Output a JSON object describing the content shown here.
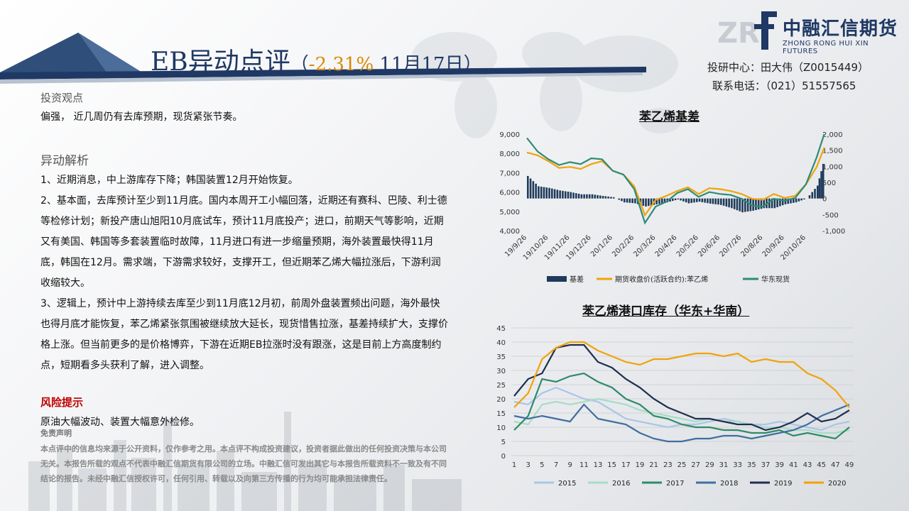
{
  "header": {
    "title_main": "EB异动点评",
    "title_open": "（",
    "title_change": "-2.31%",
    "title_date": " 11月17日",
    "title_close": "）"
  },
  "logo": {
    "letters": "ZR",
    "name_cn": "中融汇信期货",
    "name_en": "ZHONG RONG HUI XIN FUTURES"
  },
  "contact": {
    "line1": "投研中心：田大伟（Z0015449）",
    "line2": "联系电话：（021）51557565"
  },
  "view": {
    "heading": "投资观点",
    "text": "偏强，  近几周仍有去库预期，现货紧张节奏。"
  },
  "analysis": {
    "heading": "异动解析",
    "p1": "1、近期消息，中上游库存下降；韩国装置12月开始恢复。",
    "p2": "2、基本面，去库预计至少到11月底。国内本周开工小幅回落，近期还有赛科、巴陵、利士德等检修计划；新投产唐山旭阳10月底试车，预计11月底投产；进口，前期天气等影响，近期又有美国、韩国等多套装置临时故障，11月进口有进一步缩量预期，海外装置最快得11月底，韩国在12月。需求端，下游需求较好，支撑开工，但近期苯乙烯大幅拉涨后，下游利润收缩较大。",
    "p3": "3、逻辑上，预计中上游持续去库至少到11月底12月初，前周外盘装置频出问题，海外最快也得月底才能恢复，苯乙烯紧张氛围被继续放大延长，现货惜售拉涨，基差持续扩大，支撑价格上涨。但当前更多的是价格博弈，下游在近期EB拉涨时没有跟涨，这是目前上方高度制约点，短期看多头获利了解，进入调整。"
  },
  "risk": {
    "heading": "风险提示",
    "text": "原油大幅波动、装置大幅意外检修。"
  },
  "disclaimer": {
    "heading": "免责声明",
    "text": "本点评中的信息均来源于公开资料，仅作参考之用。本点评不构成投资建议，投资者据此做出的任何投资决策与本公司无关。本报告所载的观点不代表中融汇信期货有限公司的立场。中融汇信可发出其它与本报告所载资料不一致及有不同结论的报告。未经中融汇信授权许可，任何引用、转载以及向第三方传播的行为均可能承担法律责任。"
  },
  "colors": {
    "navy": "#1f3864",
    "basis": "#1f3a5a",
    "futures": "#f0a30a",
    "spot": "#2e8b78",
    "y2015": "#a9c6e8",
    "y2016": "#a8dcc8",
    "y2017": "#2e8b67",
    "y2018": "#3f6f9f",
    "y2019": "#1f2f4f",
    "y2020": "#f0a30a"
  },
  "chart_data": [
    {
      "type": "line",
      "title": "苯乙烯基差",
      "x_ticks": [
        "19/9/26",
        "19/10/26",
        "19/11/26",
        "19/12/26",
        "20/1/26",
        "20/2/26",
        "20/3/26",
        "20/4/26",
        "20/5/26",
        "20/6/26",
        "20/7/26",
        "20/8/26",
        "20/9/26",
        "20/10/26"
      ],
      "x": [
        0,
        0.5,
        1,
        1.5,
        2,
        2.5,
        3,
        3.5,
        4,
        4.5,
        5,
        5.5,
        6,
        6.5,
        7,
        7.5,
        8,
        8.5,
        9,
        9.5,
        10,
        10.5,
        11,
        11.5,
        12,
        12.5,
        13,
        13.5,
        13.85
      ],
      "left_axis": {
        "ylim": [
          4000,
          9000
        ],
        "ticks": [
          "4,000",
          "5,000",
          "6,000",
          "7,000",
          "8,000",
          "9,000"
        ]
      },
      "right_axis": {
        "ylim": [
          -1000,
          2000
        ],
        "ticks": [
          "-1,000",
          "-500",
          "0",
          "500",
          "1,000",
          "1,500",
          "2,000"
        ]
      },
      "legend": [
        "基差",
        "期货收盘价(活跃合约):苯乙烯",
        "华东现货"
      ],
      "series": [
        {
          "name": "基差",
          "axis": "right",
          "kind": "bar",
          "values": [
            700,
            380,
            330,
            250,
            200,
            130,
            130,
            80,
            40,
            -120,
            -150,
            -250,
            -180,
            -120,
            -30,
            -150,
            -100,
            -160,
            -200,
            -300,
            -430,
            -380,
            -300,
            -300,
            -180,
            -120,
            0,
            400,
            1300
          ]
        },
        {
          "name": "期货收盘价(活跃合约):苯乙烯",
          "axis": "left",
          "kind": "line",
          "values": [
            8050,
            7900,
            7600,
            7250,
            7300,
            7200,
            7450,
            7600,
            7100,
            6900,
            6300,
            4800,
            5600,
            5800,
            6050,
            6250,
            5900,
            6200,
            6150,
            6050,
            5900,
            5650,
            5600,
            5900,
            5700,
            5800,
            6400,
            7300,
            8300
          ]
        },
        {
          "name": "华东现货",
          "axis": "left",
          "kind": "line",
          "values": [
            8800,
            8100,
            7700,
            7400,
            7550,
            7450,
            7750,
            7700,
            7100,
            6900,
            6150,
            4400,
            5250,
            5500,
            5950,
            6150,
            5750,
            6000,
            5900,
            5850,
            5650,
            5300,
            5250,
            5650,
            5550,
            5700,
            6400,
            7800,
            9000
          ]
        }
      ]
    },
    {
      "type": "line",
      "title": "苯乙烯港口库存（华东+华南）",
      "x": [
        1,
        3,
        5,
        7,
        9,
        11,
        13,
        15,
        17,
        19,
        21,
        23,
        25,
        27,
        29,
        31,
        33,
        35,
        37,
        39,
        41,
        43,
        45,
        47,
        49
      ],
      "ylim": [
        0,
        45
      ],
      "y_ticks": [
        0,
        5,
        10,
        15,
        20,
        25,
        30,
        35,
        40,
        45
      ],
      "legend_position": "bottom",
      "series": [
        {
          "name": "2015",
          "values": [
            19,
            18,
            22,
            24,
            22,
            20,
            19,
            16,
            13,
            12,
            11,
            10,
            11,
            11,
            12,
            13,
            12,
            11,
            11,
            12,
            11,
            10,
            9,
            11,
            12
          ]
        },
        {
          "name": "2016",
          "values": [
            12,
            11,
            18,
            19,
            18,
            19,
            20,
            19,
            18,
            16,
            15,
            14,
            13,
            12,
            13,
            12,
            12,
            11,
            10,
            10,
            9,
            9,
            8,
            8,
            9
          ]
        },
        {
          "name": "2017",
          "values": [
            9,
            14,
            27,
            26,
            28,
            29,
            26,
            24,
            20,
            18,
            14,
            13,
            11,
            10,
            10,
            9,
            9,
            8,
            8,
            9,
            7,
            8,
            7,
            6,
            10
          ]
        },
        {
          "name": "2018",
          "values": [
            14,
            13,
            14,
            13,
            12,
            18,
            13,
            12,
            11,
            8,
            6,
            5,
            5,
            6,
            6,
            7,
            7,
            6,
            7,
            8,
            9,
            11,
            14,
            16,
            18
          ]
        },
        {
          "name": "2019",
          "values": [
            21,
            27,
            29,
            38,
            39,
            39,
            33,
            31,
            27,
            24,
            20,
            17,
            15,
            13,
            13,
            12,
            11,
            11,
            9,
            10,
            12,
            15,
            12,
            13,
            16
          ]
        },
        {
          "name": "2020",
          "values": [
            17,
            22,
            34,
            38,
            40,
            40,
            37,
            35,
            33,
            32,
            34,
            34,
            35,
            36,
            36,
            35,
            36,
            33,
            34,
            33,
            33,
            29,
            27,
            23,
            17
          ]
        }
      ]
    }
  ]
}
